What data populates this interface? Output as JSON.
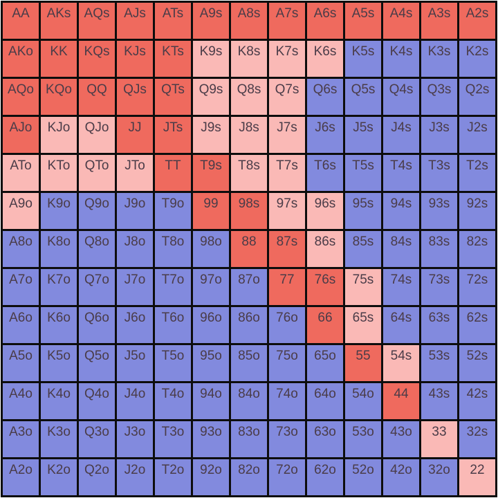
{
  "chart_data": {
    "type": "heatmap",
    "description": "13x13 poker starting-hand range matrix; pairs on the diagonal, suited combos above, offsuit combos below",
    "rows": 13,
    "cols": 13,
    "cell_labels": [
      [
        "AA",
        "AKs",
        "AQs",
        "AJs",
        "ATs",
        "A9s",
        "A8s",
        "A7s",
        "A6s",
        "A5s",
        "A4s",
        "A3s",
        "A2s"
      ],
      [
        "AKo",
        "KK",
        "KQs",
        "KJs",
        "KTs",
        "K9s",
        "K8s",
        "K7s",
        "K6s",
        "K5s",
        "K4s",
        "K3s",
        "K2s"
      ],
      [
        "AQo",
        "KQo",
        "QQ",
        "QJs",
        "QTs",
        "Q9s",
        "Q8s",
        "Q7s",
        "Q6s",
        "Q5s",
        "Q4s",
        "Q3s",
        "Q2s"
      ],
      [
        "AJo",
        "KJo",
        "QJo",
        "JJ",
        "JTs",
        "J9s",
        "J8s",
        "J7s",
        "J6s",
        "J5s",
        "J4s",
        "J3s",
        "J2s"
      ],
      [
        "ATo",
        "KTo",
        "QTo",
        "JTo",
        "TT",
        "T9s",
        "T8s",
        "T7s",
        "T6s",
        "T5s",
        "T4s",
        "T3s",
        "T2s"
      ],
      [
        "A9o",
        "K9o",
        "Q9o",
        "J9o",
        "T9o",
        "99",
        "98s",
        "97s",
        "96s",
        "95s",
        "94s",
        "93s",
        "92s"
      ],
      [
        "A8o",
        "K8o",
        "Q8o",
        "J8o",
        "T8o",
        "98o",
        "88",
        "87s",
        "86s",
        "85s",
        "84s",
        "83s",
        "82s"
      ],
      [
        "A7o",
        "K7o",
        "Q7o",
        "J7o",
        "T7o",
        "97o",
        "87o",
        "77",
        "76s",
        "75s",
        "74s",
        "73s",
        "72s"
      ],
      [
        "A6o",
        "K6o",
        "Q6o",
        "J6o",
        "T6o",
        "96o",
        "86o",
        "76o",
        "66",
        "65s",
        "64s",
        "63s",
        "62s"
      ],
      [
        "A5o",
        "K5o",
        "Q5o",
        "J5o",
        "T5o",
        "95o",
        "85o",
        "75o",
        "65o",
        "55",
        "54s",
        "53s",
        "52s"
      ],
      [
        "A4o",
        "K4o",
        "Q4o",
        "J4o",
        "T4o",
        "94o",
        "84o",
        "74o",
        "64o",
        "54o",
        "44",
        "43s",
        "42s"
      ],
      [
        "A3o",
        "K3o",
        "Q3o",
        "J3o",
        "T3o",
        "93o",
        "83o",
        "73o",
        "63o",
        "53o",
        "43o",
        "33",
        "32s"
      ],
      [
        "A2o",
        "K2o",
        "Q2o",
        "J2o",
        "T2o",
        "92o",
        "82o",
        "72o",
        "62o",
        "52o",
        "42o",
        "32o",
        "22"
      ]
    ],
    "cell_states": [
      "rrrrrrrrrrrrr",
      "rrrrrppppbbbb",
      "rrrrrpppbbbbb",
      "rpprrpppbbbbb",
      "pppprrppbbbbb",
      "pbbbbrrppbbbb",
      "bbbbbbrrpbbbb",
      "bbbbbbbrrpbbb",
      "bbbbbbbbrpbbb",
      "bbbbbbbbbrpbb",
      "bbbbbbbbbbrbb",
      "bbbbbbbbbbbpb",
      "bbbbbbbbbbbbp"
    ],
    "state_legend": {
      "r": "red-strong",
      "p": "pink-marginal",
      "b": "blue-fold"
    },
    "state_colors": {
      "r": "#ef6a5e",
      "p": "#fab9b6",
      "b": "#828ade"
    },
    "text_color": "#4a3c48",
    "grid_line_color": "#0d0d0d",
    "outer_background": "#ffffff"
  }
}
